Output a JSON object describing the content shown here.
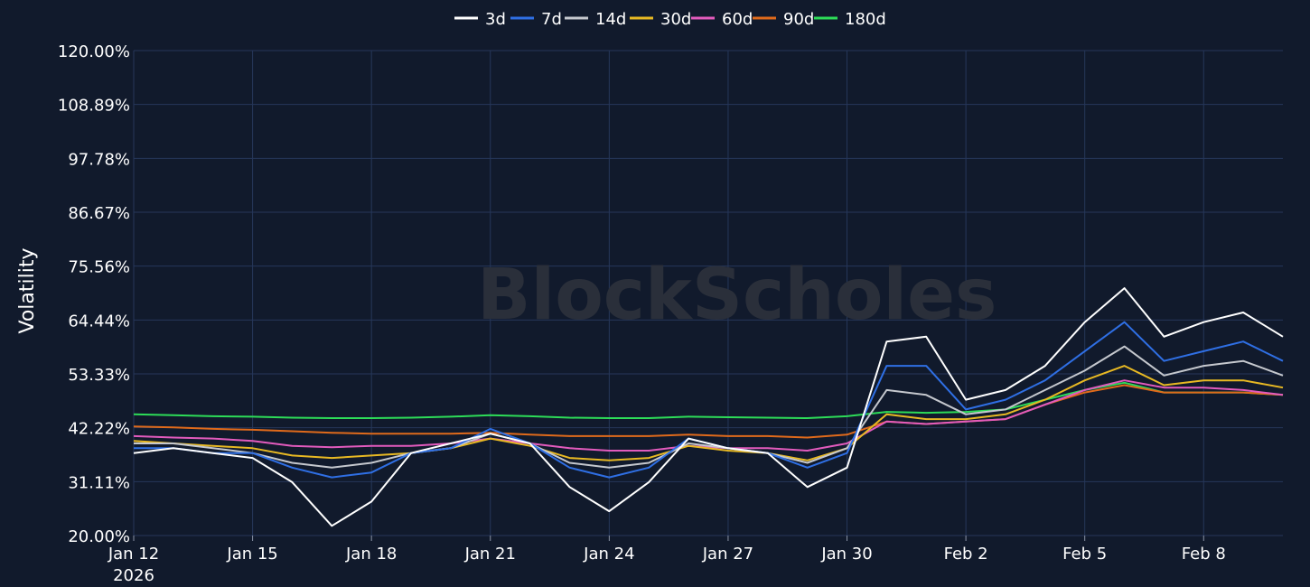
{
  "watermark": "BlockScholes",
  "chart_data": {
    "type": "line",
    "ylabel": "Volatility",
    "xlabel": "",
    "ylim": [
      20,
      120
    ],
    "y_ticks": [
      "20.00%",
      "31.11%",
      "42.22%",
      "53.33%",
      "64.44%",
      "75.56%",
      "86.67%",
      "97.78%",
      "108.89%",
      "120.00%"
    ],
    "y_tick_values": [
      20,
      31.11,
      42.22,
      53.33,
      64.44,
      75.56,
      86.67,
      97.78,
      108.89,
      120
    ],
    "xlim": [
      "2026-01-12",
      "2026-02-10"
    ],
    "x_ticks": [
      "Jan 12",
      "Jan 15",
      "Jan 18",
      "Jan 21",
      "Jan 24",
      "Jan 27",
      "Jan 30",
      "Feb 2",
      "Feb 5",
      "Feb 8"
    ],
    "x_tick_dates": [
      "2026-01-12",
      "2026-01-15",
      "2026-01-18",
      "2026-01-21",
      "2026-01-24",
      "2026-01-27",
      "2026-01-30",
      "2026-02-02",
      "2026-02-05",
      "2026-02-08"
    ],
    "x_year_label": "2026",
    "grid": true,
    "legend_position": "top-center",
    "x": [
      "2026-01-12",
      "2026-01-13",
      "2026-01-14",
      "2026-01-15",
      "2026-01-16",
      "2026-01-17",
      "2026-01-18",
      "2026-01-19",
      "2026-01-20",
      "2026-01-21",
      "2026-01-22",
      "2026-01-23",
      "2026-01-24",
      "2026-01-25",
      "2026-01-26",
      "2026-01-27",
      "2026-01-28",
      "2026-01-29",
      "2026-01-30",
      "2026-01-31",
      "2026-02-01",
      "2026-02-02",
      "2026-02-03",
      "2026-02-04",
      "2026-02-05",
      "2026-02-06",
      "2026-02-07",
      "2026-02-08",
      "2026-02-09",
      "2026-02-10"
    ],
    "series": [
      {
        "name": "3d",
        "color": "#ffffff",
        "values": [
          37,
          38,
          37,
          36,
          31,
          22,
          27,
          37,
          39,
          41,
          39,
          30,
          25,
          31,
          40,
          38,
          37,
          30,
          34,
          60,
          61,
          48,
          50,
          55,
          64,
          71,
          61,
          64,
          66,
          61
        ]
      },
      {
        "name": "7d",
        "color": "#2f6fe4",
        "values": [
          38,
          38,
          37,
          37,
          34,
          32,
          33,
          37,
          38,
          42,
          39,
          34,
          32,
          34,
          40,
          38,
          37,
          34,
          37,
          55,
          55,
          46,
          48,
          52,
          58,
          64,
          56,
          58,
          60,
          56
        ]
      },
      {
        "name": "14d",
        "color": "#c5c8ce",
        "values": [
          39,
          39,
          38,
          37,
          35,
          34,
          35,
          37,
          38,
          41,
          39,
          35,
          34,
          35,
          39,
          38,
          37,
          35,
          38,
          50,
          49,
          45,
          46,
          50,
          54,
          59,
          53,
          55,
          56,
          53
        ]
      },
      {
        "name": "30d",
        "color": "#e8b923",
        "values": [
          39.5,
          39,
          38.5,
          38,
          36.5,
          36,
          36.5,
          37,
          38,
          40,
          38.5,
          36,
          35.5,
          36,
          38.5,
          37.5,
          37,
          35.5,
          38,
          45,
          44,
          44,
          45,
          48,
          52,
          55,
          51,
          52,
          52,
          50.5
        ]
      },
      {
        "name": "60d",
        "color": "#e25bbd",
        "values": [
          40.5,
          40.2,
          40,
          39.5,
          38.5,
          38.2,
          38.5,
          38.5,
          39,
          40,
          39,
          38,
          37.5,
          37.5,
          38.5,
          38,
          38,
          37.5,
          39,
          43.5,
          43,
          43.5,
          44,
          47,
          50,
          52,
          50.5,
          50.5,
          50,
          49
        ]
      },
      {
        "name": "90d",
        "color": "#e06a1b",
        "values": [
          42.5,
          42.3,
          42,
          41.8,
          41.5,
          41.2,
          41,
          41,
          41,
          41.2,
          40.8,
          40.5,
          40.5,
          40.5,
          40.8,
          40.5,
          40.5,
          40.2,
          40.8,
          43.5,
          43,
          43.5,
          44,
          47,
          49.5,
          51,
          49.5,
          49.5,
          49.5,
          49
        ]
      },
      {
        "name": "180d",
        "color": "#2ddc58",
        "values": [
          45,
          44.8,
          44.6,
          44.5,
          44.3,
          44.2,
          44.2,
          44.3,
          44.5,
          44.8,
          44.6,
          44.3,
          44.2,
          44.2,
          44.5,
          44.4,
          44.3,
          44.2,
          44.6,
          45.5,
          45.3,
          45.5,
          46,
          48,
          50,
          51.5,
          49.5,
          49.5,
          49.5,
          49
        ]
      }
    ]
  }
}
